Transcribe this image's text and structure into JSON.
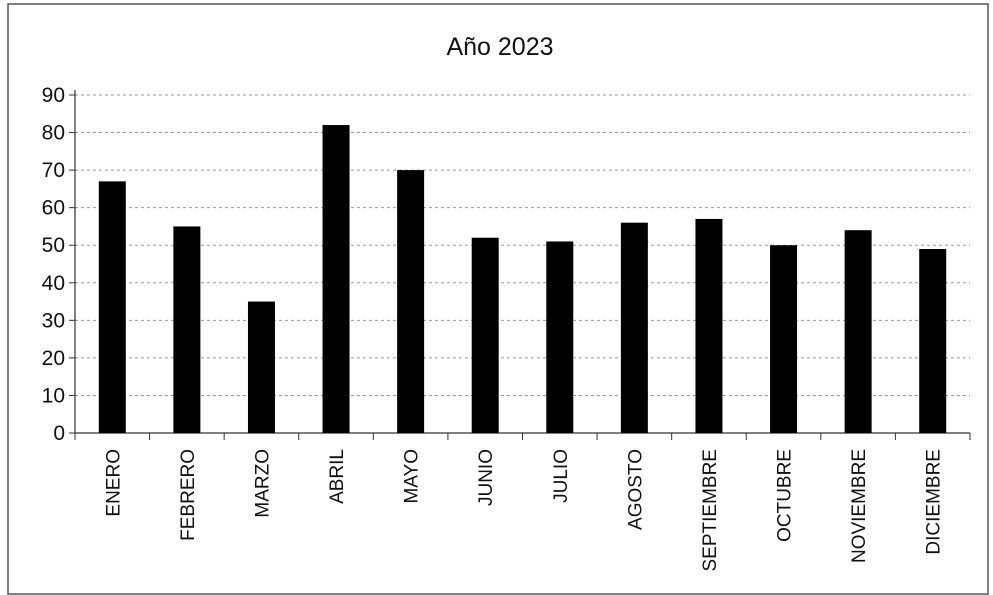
{
  "chart_data": {
    "type": "bar",
    "title": "Año 2023",
    "xlabel": "",
    "ylabel": "",
    "categories": [
      "ENERO",
      "FEBRERO",
      "MARZO",
      "ABRIL",
      "MAYO",
      "JUNIO",
      "JULIO",
      "AGOSTO",
      "SEPTIEMBRE",
      "OCTUBRE",
      "NOVIEMBRE",
      "DICIEMBRE"
    ],
    "values": [
      67,
      55,
      35,
      82,
      70,
      52,
      51,
      56,
      57,
      50,
      54,
      49
    ],
    "ylim": [
      0,
      90
    ],
    "yticks": [
      0,
      10,
      20,
      30,
      40,
      50,
      60,
      70,
      80,
      90
    ],
    "grid": true,
    "legend": "none",
    "colors": {
      "bar": "#000000",
      "grid": "#9a9a9a",
      "axis": "#333333"
    }
  }
}
